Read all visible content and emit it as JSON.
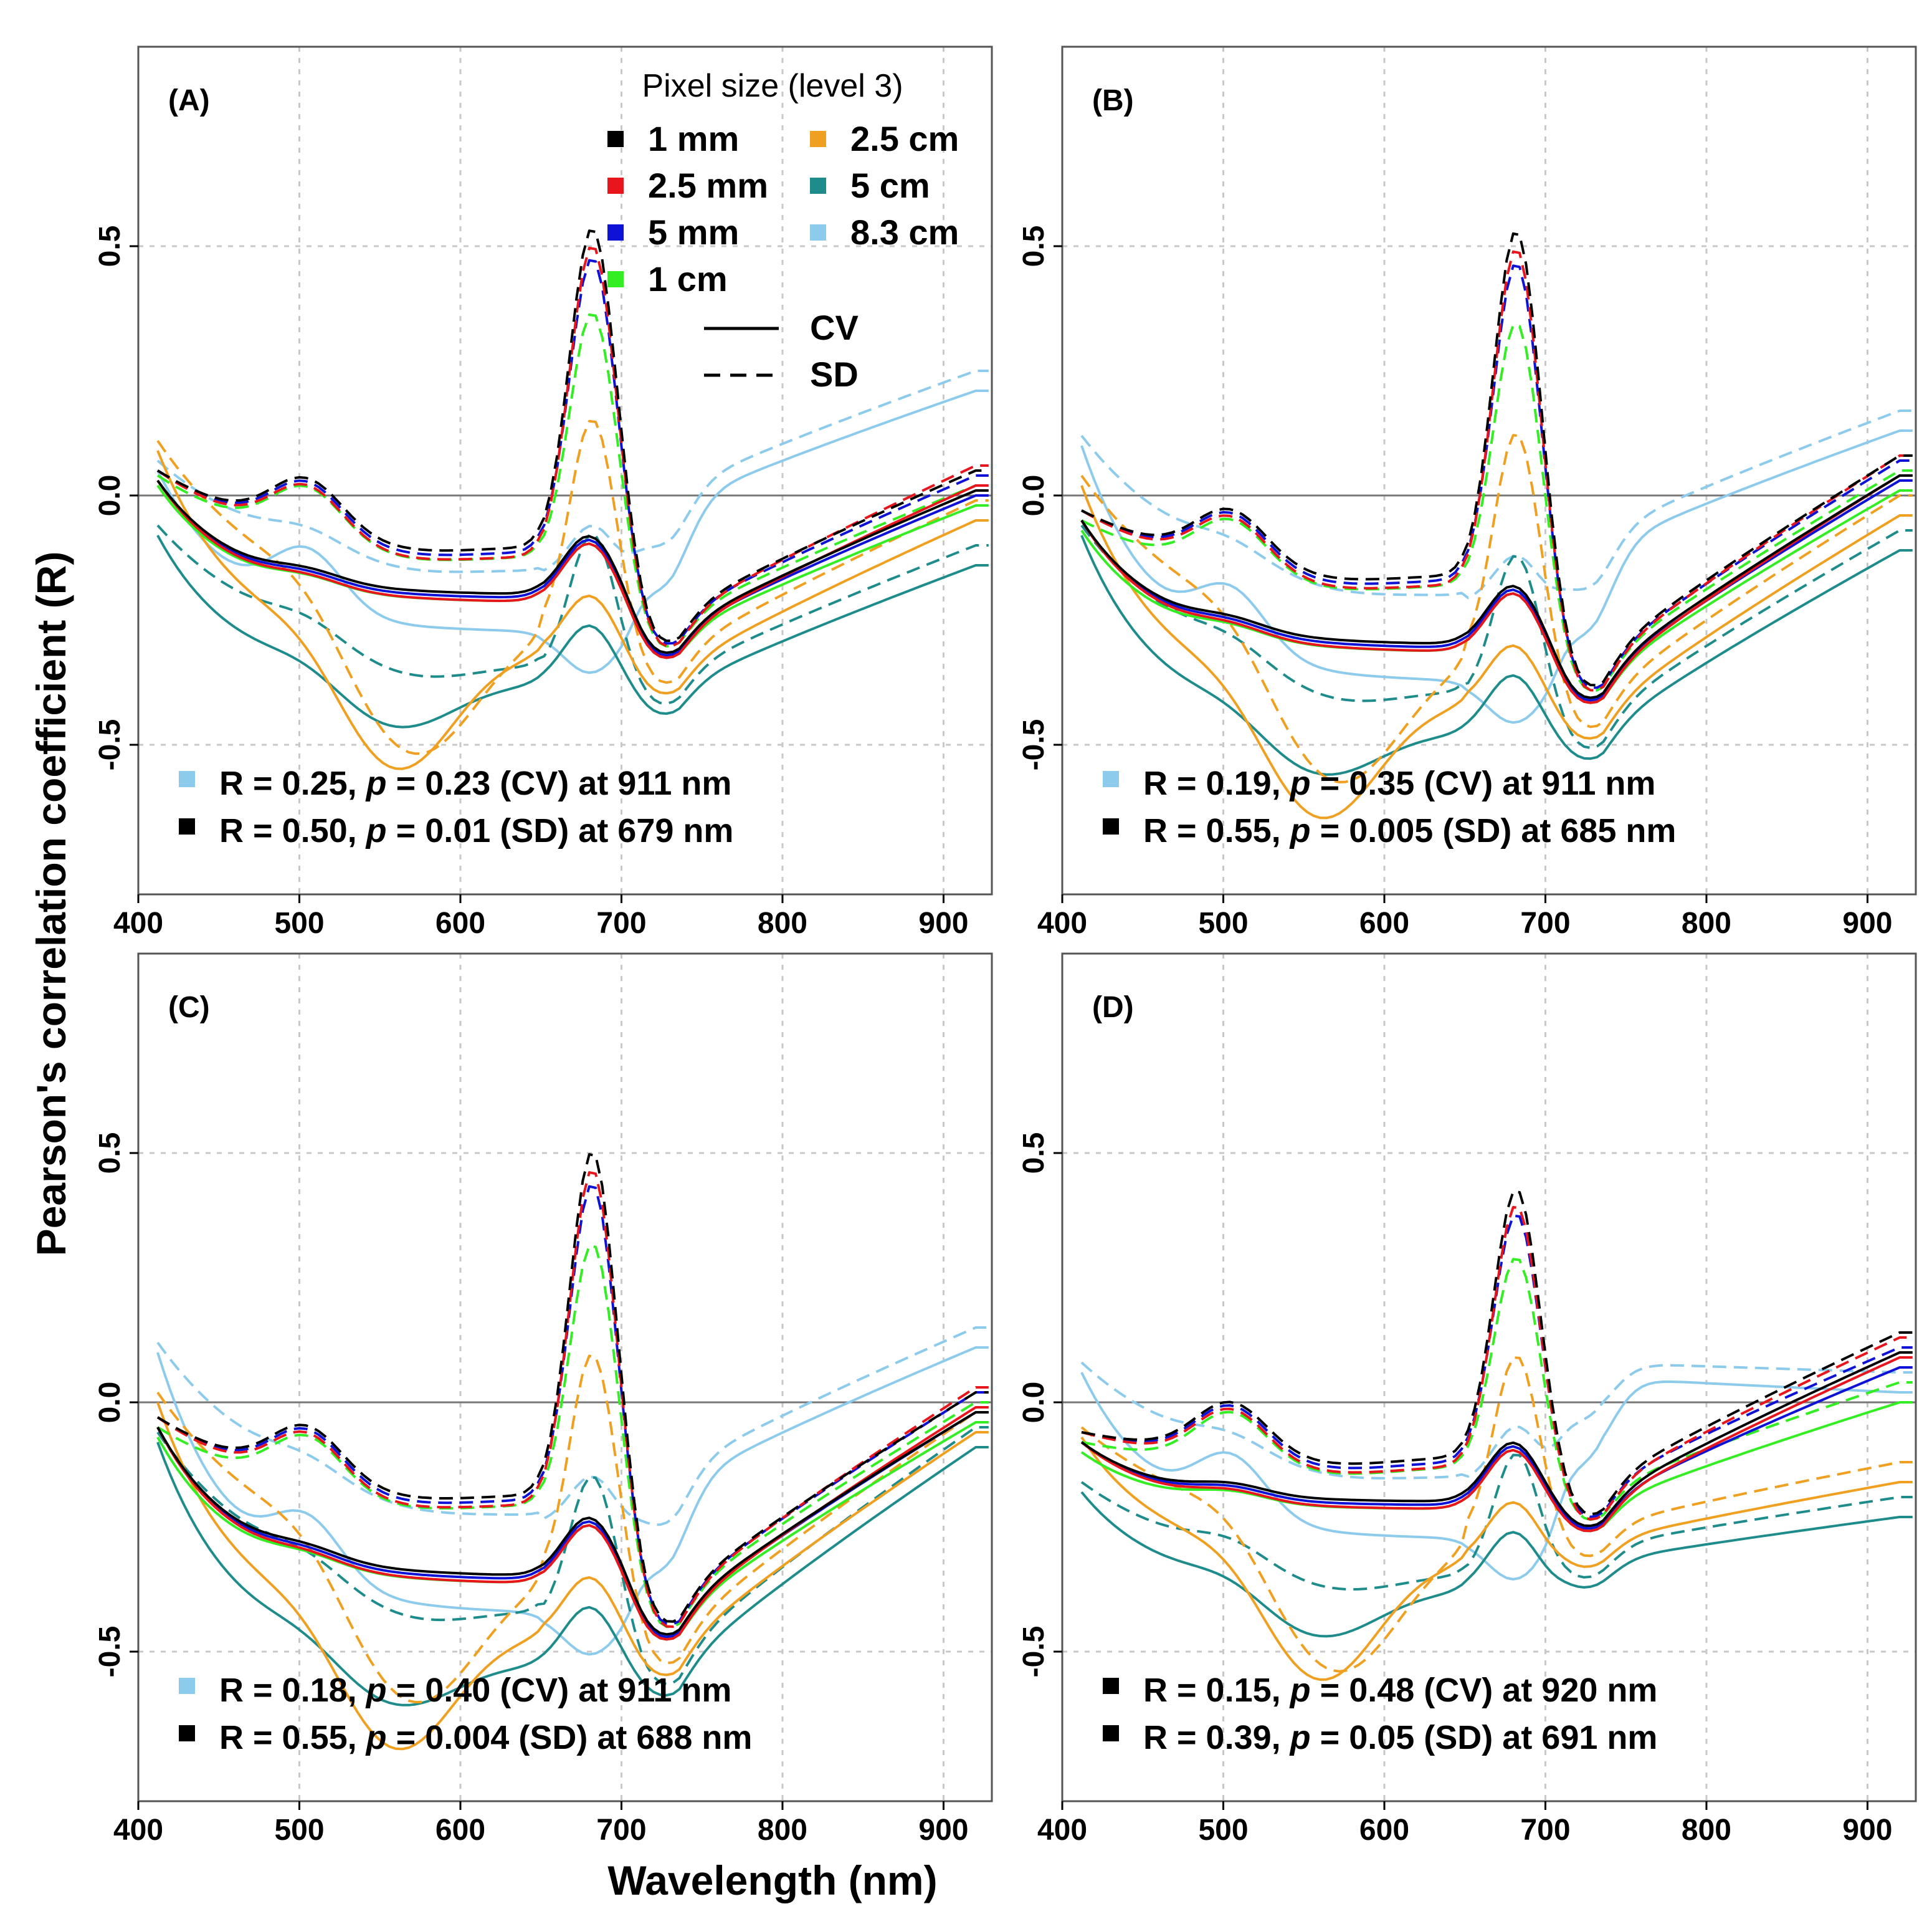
{
  "figure": {
    "y_axis_title": "Pearson's correlation coefficient (R)",
    "x_axis_title": "Wavelength (nm)",
    "legend": {
      "title": "Pixel size (level 3)",
      "entries": [
        {
          "label": "1 mm",
          "color": "#000000"
        },
        {
          "label": "2.5 mm",
          "color": "#e8161c"
        },
        {
          "label": "5 mm",
          "color": "#0d12d6"
        },
        {
          "label": "1 cm",
          "color": "#33ee22"
        },
        {
          "label": "2.5 cm",
          "color": "#f0a020"
        },
        {
          "label": "5 cm",
          "color": "#1f8c8c"
        },
        {
          "label": "8.3 cm",
          "color": "#8ccbec"
        }
      ],
      "line_types": [
        {
          "label": "CV",
          "style": "solid"
        },
        {
          "label": "SD",
          "style": "dashed"
        }
      ]
    }
  },
  "chart_data": [
    {
      "type": "line",
      "panel_label": "(A)",
      "xlabel": "Wavelength (nm)",
      "ylabel": "Pearson's correlation coefficient (R)",
      "xlim": [
        400,
        930
      ],
      "ylim": [
        -0.8,
        0.9
      ],
      "x_ticks": [
        "400",
        "500",
        "600",
        "700",
        "800",
        "900"
      ],
      "y_ticks": [
        "-0.5",
        "0.0",
        "0.5"
      ],
      "grid": true,
      "peak_sd": 0.5,
      "annotations": [
        {
          "color": "#8ccbec",
          "prefix": "R = 0.25, ",
          "p": "p",
          "suffix": " = 0.23 (CV) at 911 nm"
        },
        {
          "color": "#000000",
          "prefix": "R = 0.50, ",
          "p": "p",
          "suffix": " = 0.01 (SD) at 679 nm"
        }
      ],
      "series_note": "14 series per panel: 7 pixel sizes x {CV solid, SD dashed}"
    },
    {
      "type": "line",
      "panel_label": "(B)",
      "xlabel": "Wavelength (nm)",
      "ylabel": "Pearson's correlation coefficient (R)",
      "xlim": [
        400,
        930
      ],
      "ylim": [
        -0.8,
        0.9
      ],
      "x_ticks": [
        "400",
        "500",
        "600",
        "700",
        "800",
        "900"
      ],
      "y_ticks": [
        "-0.5",
        "0.0",
        "0.5"
      ],
      "grid": true,
      "peak_sd": 0.55,
      "annotations": [
        {
          "color": "#8ccbec",
          "prefix": "R = 0.19, ",
          "p": "p",
          "suffix": " = 0.35 (CV) at 911 nm"
        },
        {
          "color": "#000000",
          "prefix": "R = 0.55, ",
          "p": "p",
          "suffix": " = 0.005 (SD) at 685 nm"
        }
      ]
    },
    {
      "type": "line",
      "panel_label": "(C)",
      "xlabel": "Wavelength (nm)",
      "ylabel": "Pearson's correlation coefficient (R)",
      "xlim": [
        400,
        930
      ],
      "ylim": [
        -0.8,
        0.9
      ],
      "x_ticks": [
        "400",
        "500",
        "600",
        "700",
        "800",
        "900"
      ],
      "y_ticks": [
        "-0.5",
        "0.0",
        "0.5"
      ],
      "grid": true,
      "peak_sd": 0.55,
      "annotations": [
        {
          "color": "#8ccbec",
          "prefix": "R = 0.18, ",
          "p": "p",
          "suffix": " = 0.40 (CV) at 911 nm"
        },
        {
          "color": "#000000",
          "prefix": "R = 0.55, ",
          "p": "p",
          "suffix": " = 0.004 (SD) at 688 nm"
        }
      ]
    },
    {
      "type": "line",
      "panel_label": "(D)",
      "xlabel": "Wavelength (nm)",
      "ylabel": "Pearson's correlation coefficient (R)",
      "xlim": [
        400,
        930
      ],
      "ylim": [
        -0.8,
        0.9
      ],
      "x_ticks": [
        "400",
        "500",
        "600",
        "700",
        "800",
        "900"
      ],
      "y_ticks": [
        "-0.5",
        "0.0",
        "0.5"
      ],
      "grid": true,
      "peak_sd": 0.39,
      "annotations": [
        {
          "color": "#000000",
          "prefix": "R = 0.15, ",
          "p": "p",
          "suffix": " = 0.48 (CV) at 920 nm"
        },
        {
          "color": "#000000",
          "prefix": "R = 0.39, ",
          "p": "p",
          "suffix": " = 0.05 (SD) at 691 nm"
        }
      ]
    }
  ]
}
